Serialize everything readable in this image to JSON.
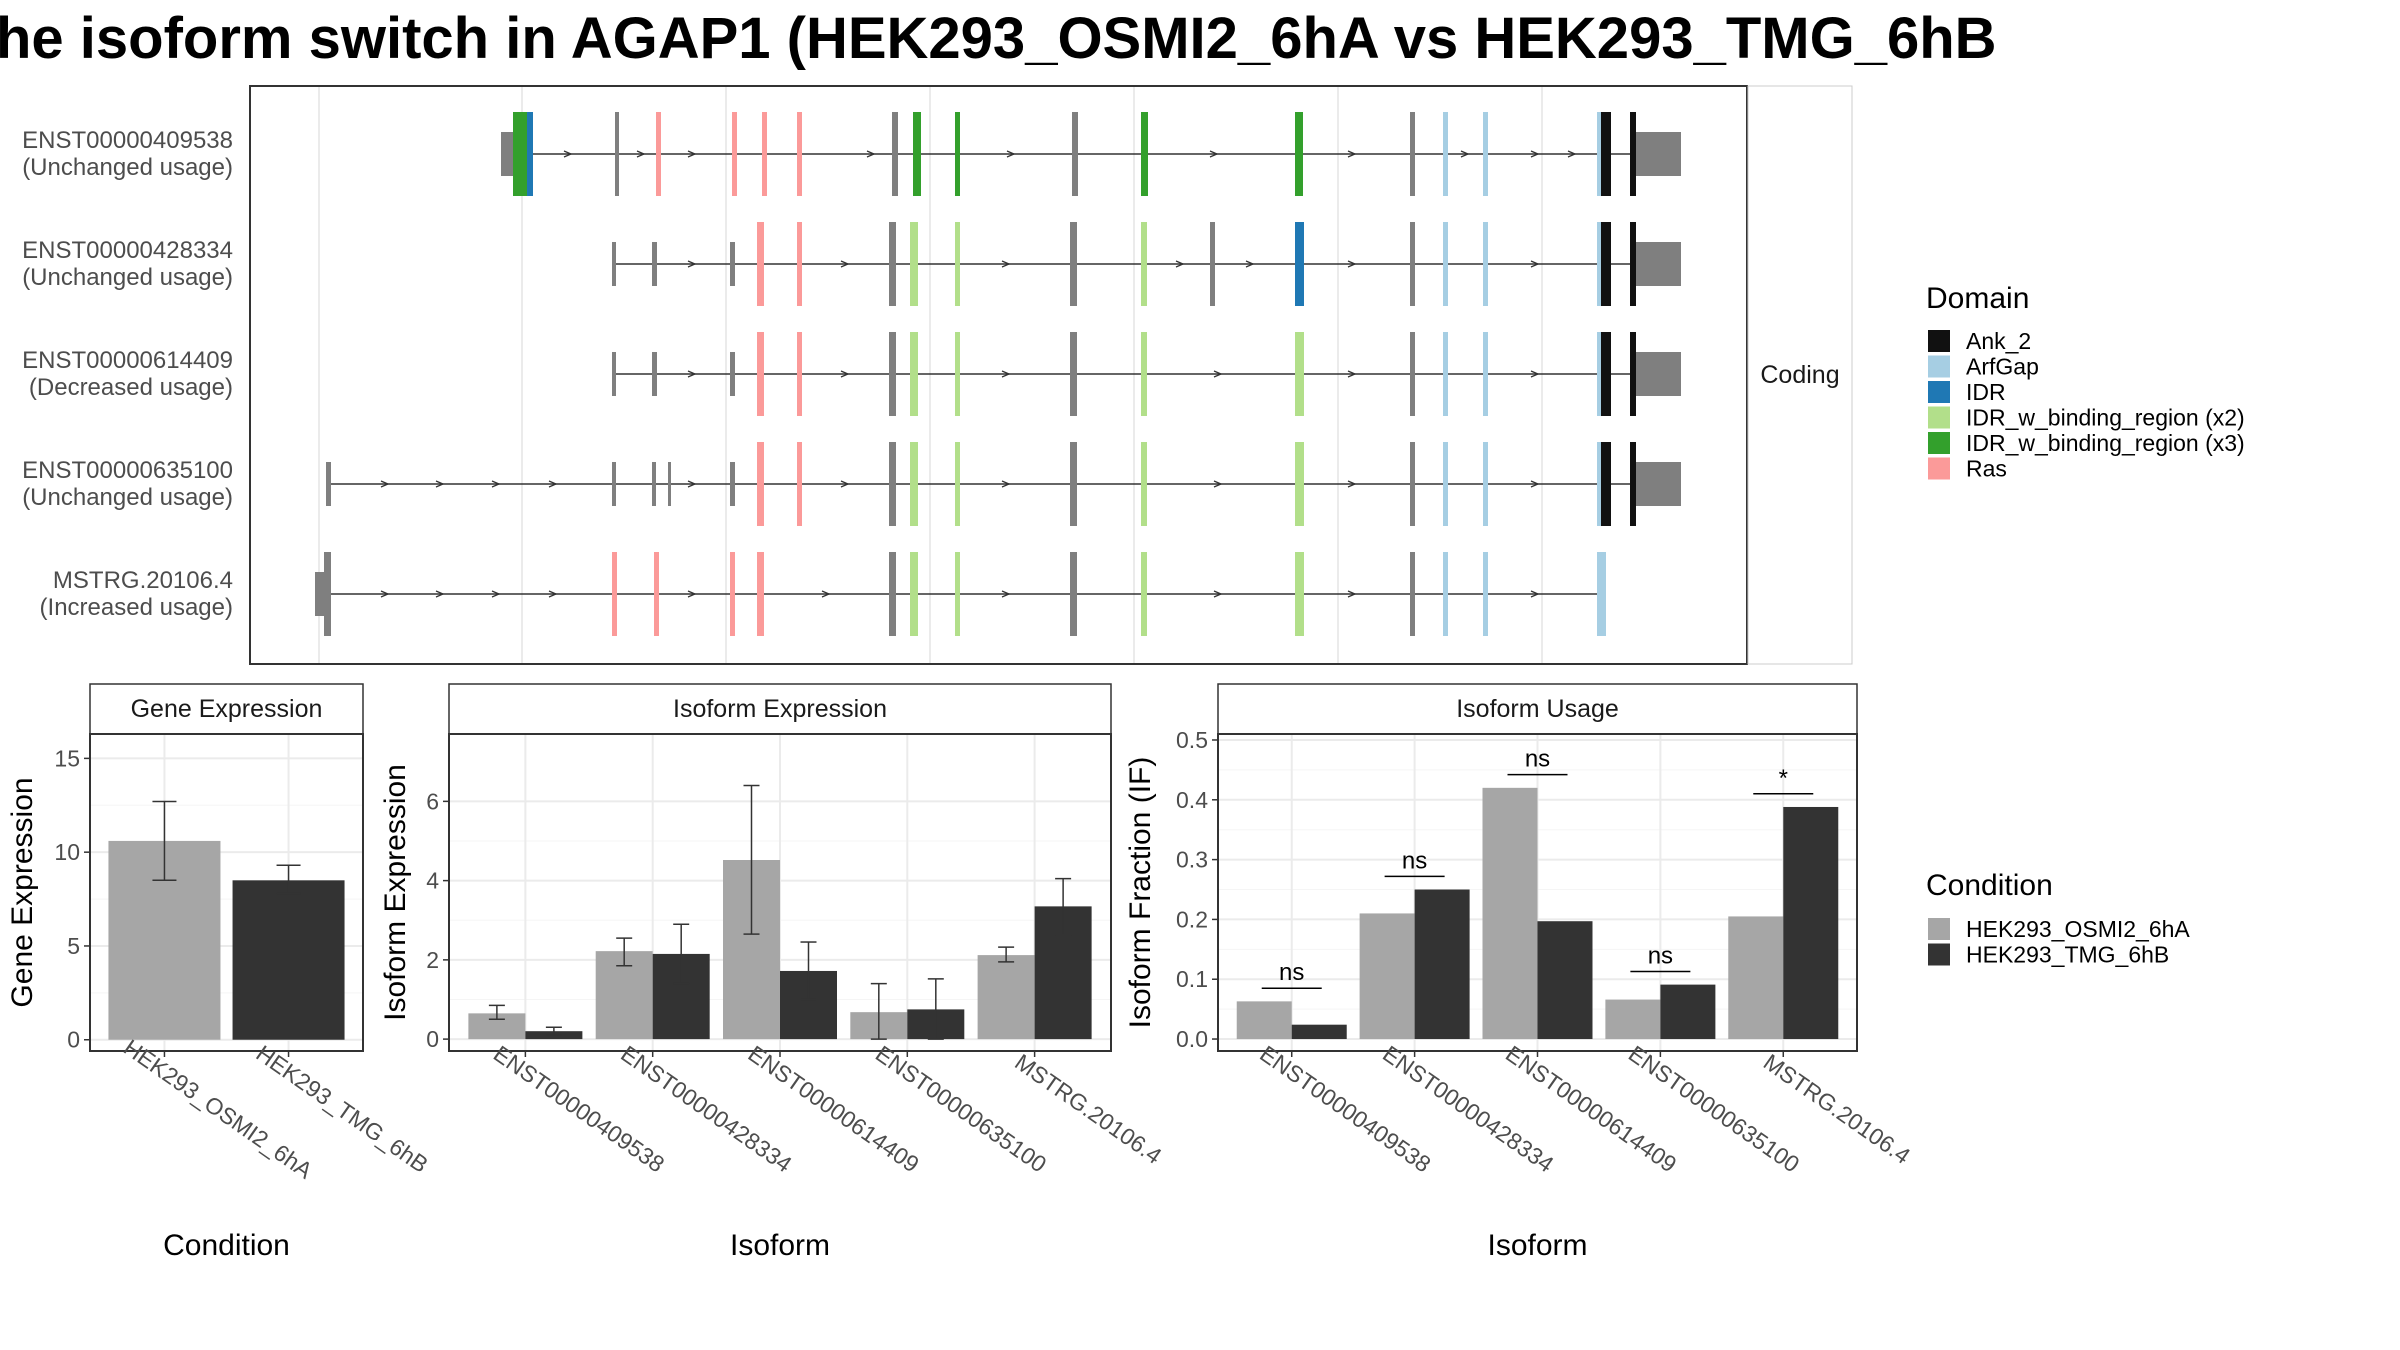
{
  "title": "he isoform switch in AGAP1 (HEK293_OSMI2_6hA vs HEK293_TMG_6hB",
  "transcript_panel": {
    "facet_label": "Coding",
    "isoforms": [
      {
        "id": "ENST00000409538",
        "usage": "(Unchanged usage)"
      },
      {
        "id": "ENST00000428334",
        "usage": "(Unchanged usage)"
      },
      {
        "id": "ENST00000614409",
        "usage": "(Decreased usage)"
      },
      {
        "id": "ENST00000635100",
        "usage": "(Unchanged usage)"
      },
      {
        "id": "MSTRG.20106.4",
        "usage": "(Increased usage)"
      }
    ]
  },
  "domain_legend": {
    "title": "Domain",
    "items": [
      {
        "label": "Ank_2",
        "color": "#111111"
      },
      {
        "label": "ArfGap",
        "color": "#a6cee3"
      },
      {
        "label": "IDR",
        "color": "#1f78b4"
      },
      {
        "label": "IDR_w_binding_region (x2)",
        "color": "#b2df8a"
      },
      {
        "label": "IDR_w_binding_region (x3)",
        "color": "#33a02c"
      },
      {
        "label": "Ras",
        "color": "#fb9a99"
      }
    ]
  },
  "condition_legend": {
    "title": "Condition",
    "items": [
      {
        "label": "HEK293_OSMI2_6hA",
        "color": "#a6a6a6"
      },
      {
        "label": "HEK293_TMG_6hB",
        "color": "#333333"
      }
    ]
  },
  "chart_data": [
    {
      "type": "bar",
      "title": "Gene Expression",
      "xlabel": "Condition",
      "ylabel": "Gene Expression",
      "categories": [
        "HEK293_OSMI2_6hA",
        "HEK293_TMG_6hB"
      ],
      "values": [
        10.6,
        8.5
      ],
      "errors": [
        [
          8.5,
          12.7
        ],
        [
          7.8,
          9.3
        ]
      ],
      "colors": [
        "#a6a6a6",
        "#333333"
      ],
      "ylim": [
        -0.6,
        16.3
      ],
      "yticks": [
        0,
        5,
        10,
        15
      ]
    },
    {
      "type": "bar",
      "title": "Isoform Expression",
      "xlabel": "Isoform",
      "ylabel": "Isoform Expression",
      "categories": [
        "ENST00000409538",
        "ENST00000428334",
        "ENST00000614409",
        "ENST00000635100",
        "MSTRG.20106.4"
      ],
      "series": [
        {
          "name": "HEK293_OSMI2_6hA",
          "values": [
            0.65,
            2.22,
            4.52,
            0.68,
            2.12
          ],
          "errors": [
            [
              0.5,
              0.85
            ],
            [
              1.85,
              2.55
            ],
            [
              2.65,
              6.4
            ],
            [
              0.0,
              1.4
            ],
            [
              1.95,
              2.32
            ]
          ]
        },
        {
          "name": "HEK293_TMG_6hB",
          "values": [
            0.2,
            2.15,
            1.72,
            0.75,
            3.35
          ],
          "errors": [
            [
              0.1,
              0.3
            ],
            [
              1.4,
              2.9
            ],
            [
              1.0,
              2.45
            ],
            [
              0.0,
              1.52
            ],
            [
              2.62,
              4.05
            ]
          ]
        }
      ],
      "ylim": [
        -0.3,
        7.7
      ],
      "yticks": [
        0,
        2,
        4,
        6
      ]
    },
    {
      "type": "bar",
      "title": "Isoform Usage",
      "xlabel": "Isoform",
      "ylabel": "Isoform Fraction (IF)",
      "categories": [
        "ENST00000409538",
        "ENST00000428334",
        "ENST00000614409",
        "ENST00000635100",
        "MSTRG.20106.4"
      ],
      "series": [
        {
          "name": "HEK293_OSMI2_6hA",
          "values": [
            0.063,
            0.21,
            0.42,
            0.066,
            0.205
          ]
        },
        {
          "name": "HEK293_TMG_6hB",
          "values": [
            0.024,
            0.25,
            0.197,
            0.091,
            0.388
          ]
        }
      ],
      "significance": [
        {
          "label": "ns",
          "y": 0.085
        },
        {
          "label": "ns",
          "y": 0.272
        },
        {
          "label": "ns",
          "y": 0.442
        },
        {
          "label": "ns",
          "y": 0.113
        },
        {
          "label": "*",
          "y": 0.41
        }
      ],
      "ylim": [
        -0.02,
        0.51
      ],
      "yticks": [
        0.0,
        0.1,
        0.2,
        0.3,
        0.4,
        0.5
      ],
      "ytick_labels": [
        "0.0",
        "0.1",
        "0.2",
        "0.3",
        "0.4",
        "0.5"
      ]
    }
  ]
}
